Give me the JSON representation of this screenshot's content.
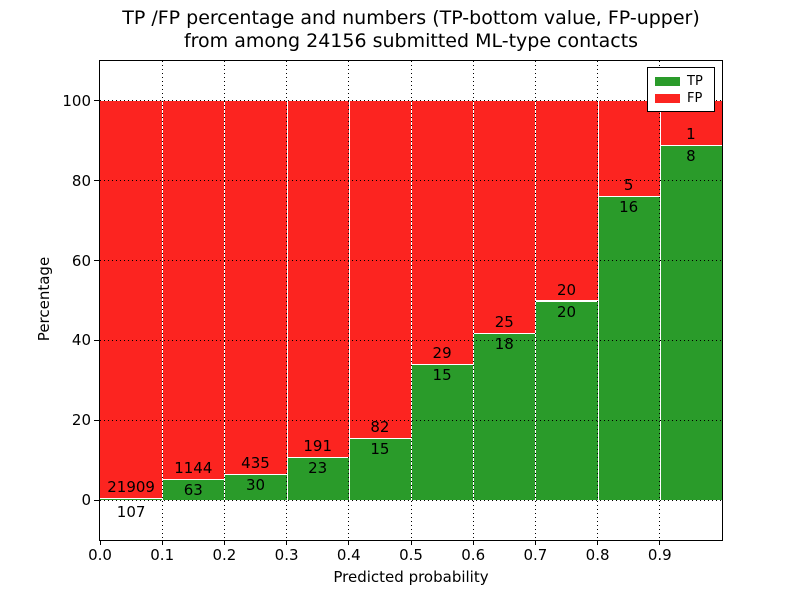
{
  "figure": {
    "title_line1": "TP /FP percentage and numbers (TP-bottom value, FP-upper)",
    "title_line2": "from among 24156 submitted ML-type contacts",
    "total_contacts": 24156
  },
  "chart_data": {
    "type": "bar",
    "stacked": true,
    "normalized_to_percent": true,
    "title": "TP /FP percentage and numbers (TP-bottom value, FP-upper) from among 24156 submitted ML-type contacts",
    "xlabel": "Predicted probability",
    "ylabel": "Percentage",
    "xlim": [
      0.0,
      1.0
    ],
    "ylim": [
      -10,
      110
    ],
    "x_ticks": [
      "0.0",
      "0.1",
      "0.2",
      "0.3",
      "0.4",
      "0.5",
      "0.6",
      "0.7",
      "0.8",
      "0.9"
    ],
    "y_ticks": [
      0,
      20,
      40,
      60,
      80,
      100
    ],
    "grid": "dotted",
    "legend_position": "upper right",
    "series": [
      {
        "name": "TP",
        "color": "#2a9b2a"
      },
      {
        "name": "FP",
        "color": "#fc2420"
      }
    ],
    "bins": [
      {
        "x_range": [
          0.0,
          0.1
        ],
        "tp": 107,
        "fp": 21909,
        "tp_pct": 0.49
      },
      {
        "x_range": [
          0.1,
          0.2
        ],
        "tp": 63,
        "fp": 1144,
        "tp_pct": 5.22
      },
      {
        "x_range": [
          0.2,
          0.3
        ],
        "tp": 30,
        "fp": 435,
        "tp_pct": 6.45
      },
      {
        "x_range": [
          0.3,
          0.4
        ],
        "tp": 23,
        "fp": 191,
        "tp_pct": 10.75
      },
      {
        "x_range": [
          0.4,
          0.5
        ],
        "tp": 15,
        "fp": 82,
        "tp_pct": 15.46
      },
      {
        "x_range": [
          0.5,
          0.6
        ],
        "tp": 15,
        "fp": 29,
        "tp_pct": 34.09
      },
      {
        "x_range": [
          0.6,
          0.7
        ],
        "tp": 18,
        "fp": 25,
        "tp_pct": 41.86
      },
      {
        "x_range": [
          0.7,
          0.8
        ],
        "tp": 20,
        "fp": 20,
        "tp_pct": 50.0
      },
      {
        "x_range": [
          0.8,
          0.9
        ],
        "tp": 16,
        "fp": 5,
        "tp_pct": 76.19
      },
      {
        "x_range": [
          0.9,
          1.0
        ],
        "tp": 8,
        "fp": 1,
        "tp_pct": 88.89
      }
    ]
  }
}
